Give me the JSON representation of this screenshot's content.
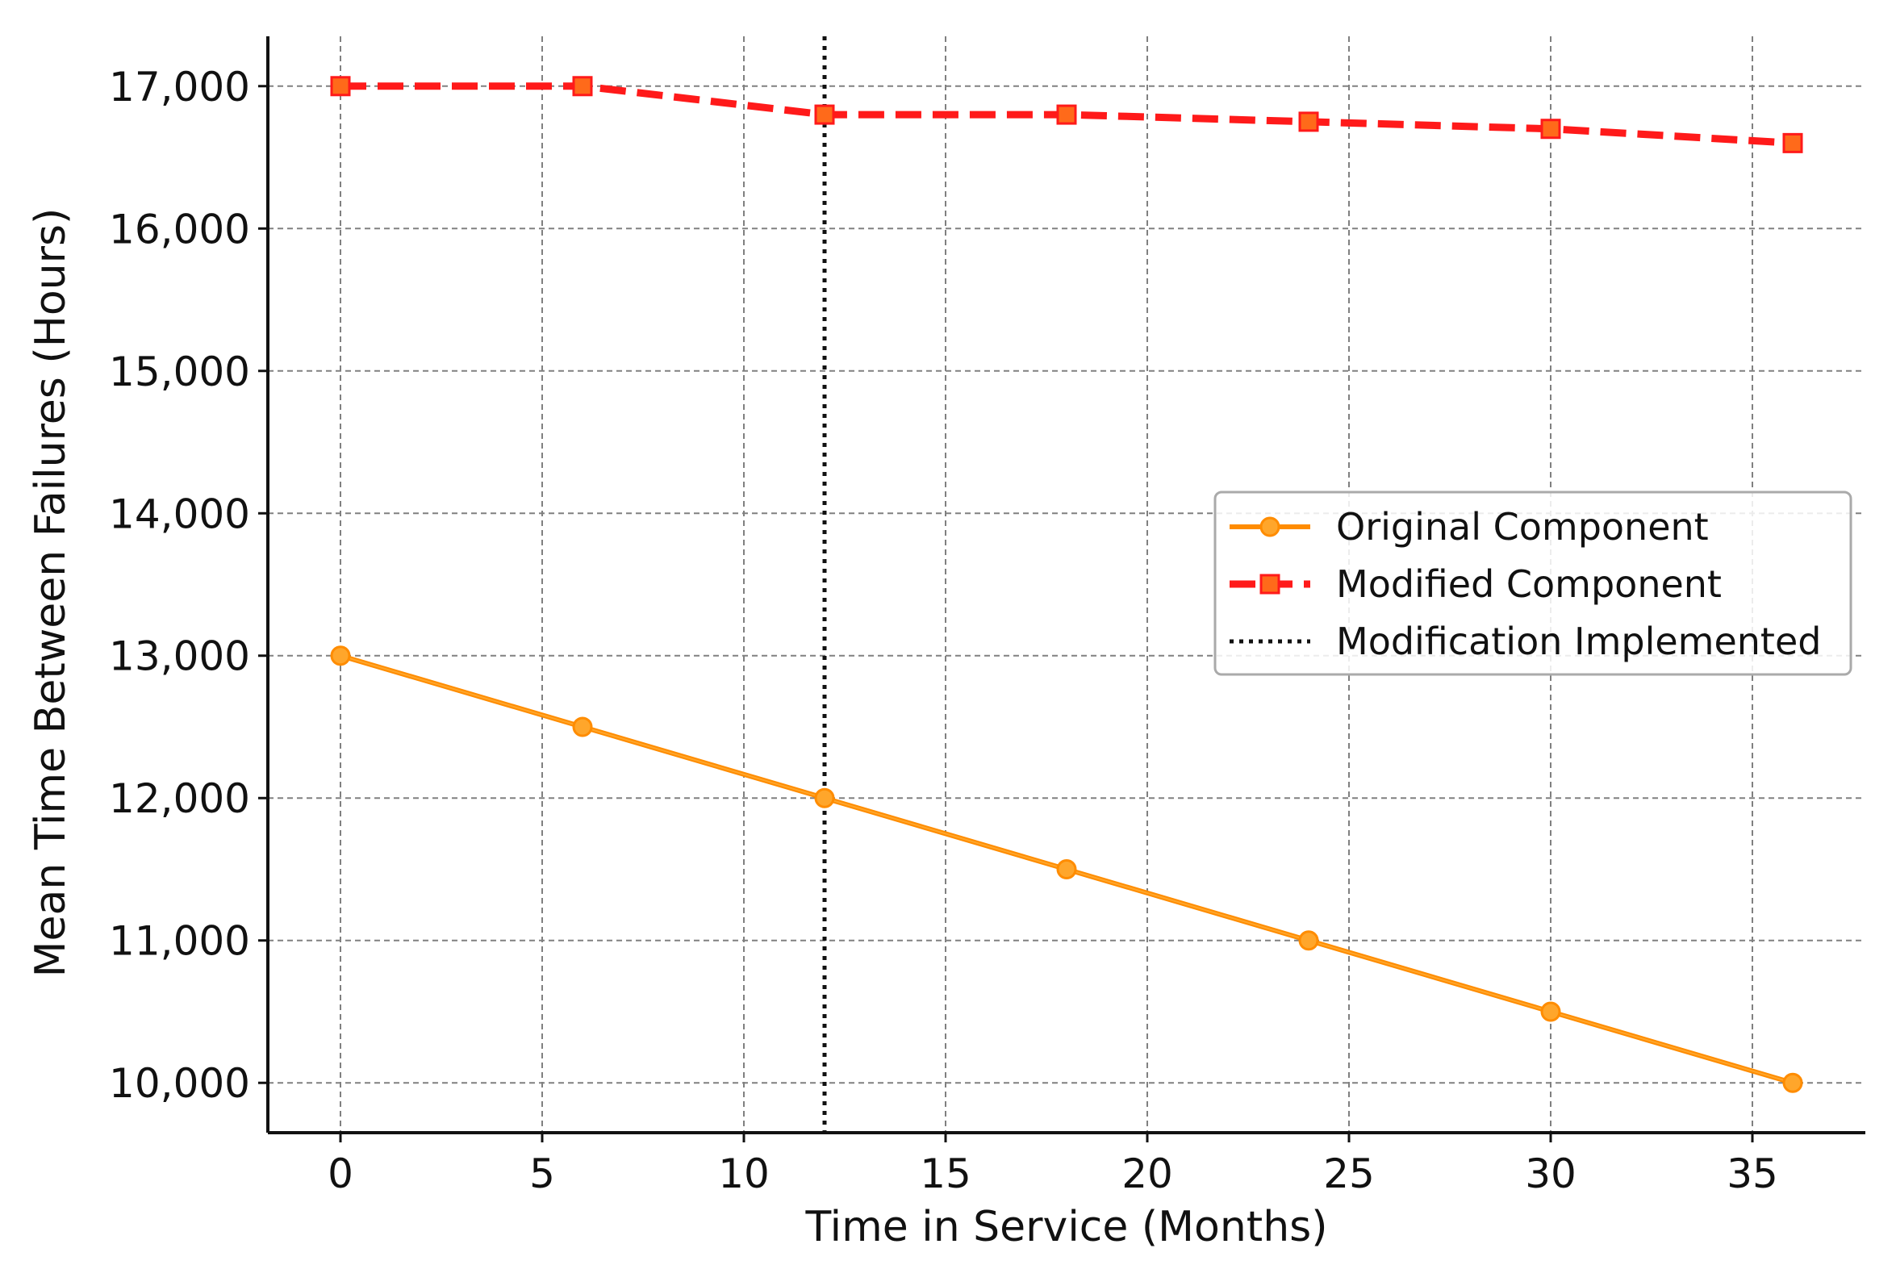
{
  "chart_data": {
    "type": "line",
    "title": "",
    "xlabel": "Time in Service (Months)",
    "ylabel": "Mean Time Between Failures (Hours)",
    "xlim": [
      -1.8,
      37.8
    ],
    "ylim": [
      9650,
      17350
    ],
    "x_ticks": [
      0,
      5,
      10,
      15,
      20,
      25,
      30,
      35
    ],
    "y_ticks": [
      10000,
      11000,
      12000,
      13000,
      14000,
      15000,
      16000,
      17000
    ],
    "y_tick_labels": [
      "10,000",
      "11,000",
      "12,000",
      "13,000",
      "14,000",
      "15,000",
      "16,000",
      "17,000"
    ],
    "grid": true,
    "legend_position": "center-right",
    "x": [
      0,
      6,
      12,
      18,
      24,
      30,
      36
    ],
    "series": [
      {
        "name": "Original Component",
        "values": [
          13000,
          12500,
          12000,
          11500,
          11000,
          10500,
          10000
        ],
        "color": "#ff8c00",
        "marker_fill": "#ffa62b",
        "style": "solid",
        "marker": "circle"
      },
      {
        "name": "Modified Component",
        "values": [
          17000,
          17000,
          16800,
          16800,
          16750,
          16700,
          16600
        ],
        "color": "#ff1a1a",
        "marker_fill": "#ff6a1a",
        "style": "dashed",
        "marker": "square"
      }
    ],
    "vlines": [
      {
        "name": "Modification Implemented",
        "x": 12,
        "color": "#111111",
        "style": "dotted"
      }
    ]
  }
}
